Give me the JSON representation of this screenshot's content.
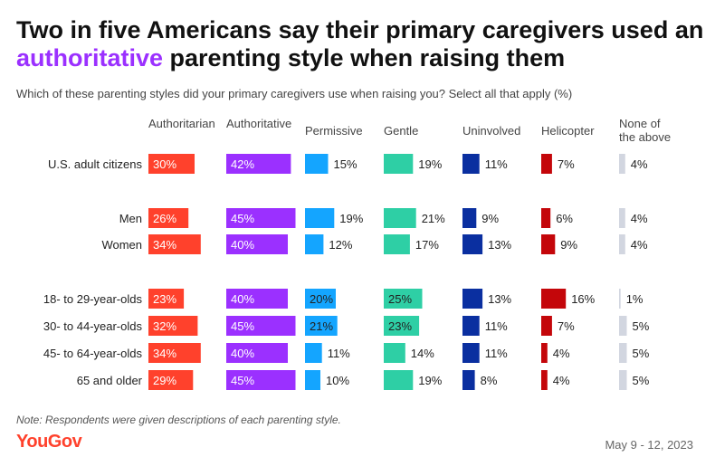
{
  "header": {
    "title_part1": "Two in five Americans say their primary caregivers used an ",
    "title_highlight": "authoritative",
    "title_part2": " parenting style when raising them",
    "subtitle": "Which of these parenting styles did your primary caregivers use when raising you? Select all that apply (%)"
  },
  "footer": {
    "note": "Note: Respondents were given descriptions of each parenting style.",
    "brand": "YouGov",
    "date": "May 9 - 12, 2023"
  },
  "colors": {
    "highlight": "#9b30ff"
  },
  "chart_data": {
    "type": "bar",
    "orientation": "horizontal-small-multiples",
    "categories": [
      "U.S. adult citizens",
      "Men",
      "Women",
      "18- to 29-year-olds",
      "30- to 44-year-olds",
      "45- to 64-year-olds",
      "65 and older"
    ],
    "series": [
      {
        "name": "Authoritarian",
        "color": "#ff412c",
        "values": [
          30,
          26,
          34,
          23,
          32,
          34,
          29
        ]
      },
      {
        "name": "Authoritative",
        "color": "#9b30ff",
        "values": [
          42,
          45,
          40,
          40,
          45,
          40,
          45
        ]
      },
      {
        "name": "Permissive",
        "color": "#14a5ff",
        "values": [
          15,
          19,
          12,
          20,
          21,
          11,
          10
        ]
      },
      {
        "name": "Gentle",
        "color": "#2ecfa5",
        "values": [
          19,
          21,
          17,
          25,
          23,
          14,
          19
        ]
      },
      {
        "name": "Uninvolved",
        "color": "#0a2fa0",
        "values": [
          11,
          9,
          13,
          13,
          11,
          11,
          8
        ]
      },
      {
        "name": "Helicopter",
        "color": "#c4060a",
        "values": [
          7,
          6,
          9,
          16,
          7,
          4,
          4
        ]
      },
      {
        "name": "None of the above",
        "color": "#d2d6e0",
        "values": [
          4,
          4,
          4,
          1,
          5,
          5,
          5
        ]
      }
    ],
    "value_suffix": "%",
    "xlim": [
      0,
      100
    ],
    "grid": false,
    "legend": "column headers"
  }
}
